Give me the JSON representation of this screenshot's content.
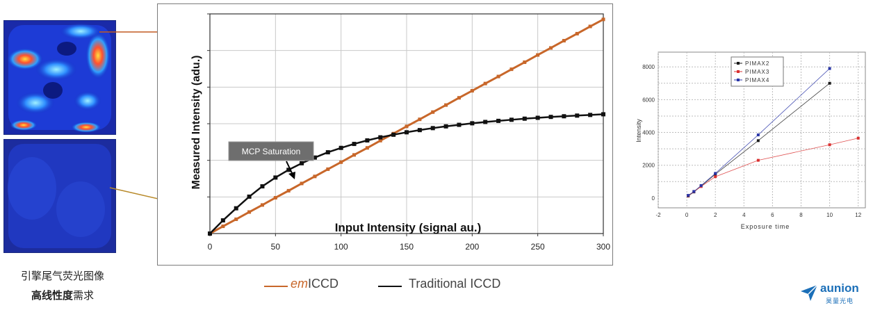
{
  "colors": {
    "em_iccd": "#c8672a",
    "traditional": "#111111",
    "arrow_top": "#c25a20",
    "arrow_bottom": "#b88a2a",
    "pimax2": "#1a1a1a",
    "pimax3": "#d93030",
    "pimax4": "#2a36a8",
    "logo": "#1b6fb8"
  },
  "left_panel": {
    "caption_line1": "引擎尾气荧光图像",
    "caption_line2_bold": "高线性度",
    "caption_line2_rest": "需求"
  },
  "legend": {
    "em_prefix": "em",
    "em_suffix": "ICCD",
    "traditional": "Traditional ICCD"
  },
  "logo": {
    "word": "aunion",
    "sub": "昊量光电"
  },
  "chart_data": [
    {
      "type": "line",
      "xlabel": "Input Intensity (signal au.)",
      "ylabel": "Measured Intensity (adu.)",
      "xlim": [
        0,
        300
      ],
      "ylim": [
        0,
        100
      ],
      "x_ticks": [
        0,
        50,
        100,
        150,
        200,
        250,
        300
      ],
      "grid": true,
      "annotations": [
        {
          "text": "MCP Saturation"
        }
      ],
      "series": [
        {
          "name": "emICCD",
          "x": [
            0,
            10,
            20,
            30,
            40,
            50,
            60,
            70,
            80,
            90,
            100,
            110,
            120,
            130,
            140,
            150,
            160,
            170,
            180,
            190,
            200,
            210,
            220,
            230,
            240,
            250,
            260,
            270,
            280,
            290,
            300
          ],
          "y": [
            0,
            3.3,
            6.5,
            9.8,
            13,
            16.3,
            19.5,
            22.8,
            26,
            29.3,
            32.5,
            35.8,
            39,
            42.3,
            45.5,
            48.8,
            52,
            55.3,
            58.5,
            61.8,
            65,
            68.3,
            71.5,
            74.8,
            78,
            81.3,
            84.5,
            87.8,
            91,
            94.3,
            97.5
          ]
        },
        {
          "name": "Traditional ICCD",
          "x": [
            0,
            10,
            20,
            30,
            40,
            50,
            60,
            70,
            80,
            90,
            100,
            110,
            120,
            130,
            140,
            150,
            160,
            170,
            180,
            190,
            200,
            210,
            220,
            230,
            240,
            250,
            260,
            270,
            280,
            290,
            300
          ],
          "y": [
            0,
            6,
            11.5,
            16.8,
            21.5,
            25.5,
            29,
            32,
            34.6,
            37,
            39,
            40.8,
            42.4,
            43.8,
            45,
            46.1,
            47.1,
            48,
            48.8,
            49.5,
            50.2,
            50.8,
            51.3,
            51.8,
            52.3,
            52.7,
            53.1,
            53.4,
            53.7,
            54,
            54.3
          ]
        }
      ]
    },
    {
      "type": "line",
      "xlabel": "Exposure time",
      "ylabel": "Intensity",
      "xlim": [
        -2,
        12.5
      ],
      "ylim": [
        -600,
        8900
      ],
      "x_ticks": [
        -2,
        0,
        2,
        4,
        6,
        8,
        10,
        12
      ],
      "y_ticks": [
        0,
        2000,
        4000,
        6000,
        8000
      ],
      "grid": true,
      "legend_position": "top-left",
      "series": [
        {
          "name": "PIMAX2",
          "x": [
            0.1,
            0.5,
            1,
            2,
            5,
            10
          ],
          "y": [
            120,
            370,
            720,
            1450,
            3500,
            7000
          ]
        },
        {
          "name": "PIMAX3",
          "x": [
            0.1,
            0.5,
            1,
            2,
            5,
            10,
            12
          ],
          "y": [
            140,
            390,
            700,
            1300,
            2300,
            3250,
            3650
          ]
        },
        {
          "name": "PIMAX4",
          "x": [
            0.1,
            0.5,
            1,
            2,
            5,
            10
          ],
          "y": [
            160,
            400,
            760,
            1500,
            3850,
            7900
          ]
        }
      ]
    }
  ]
}
